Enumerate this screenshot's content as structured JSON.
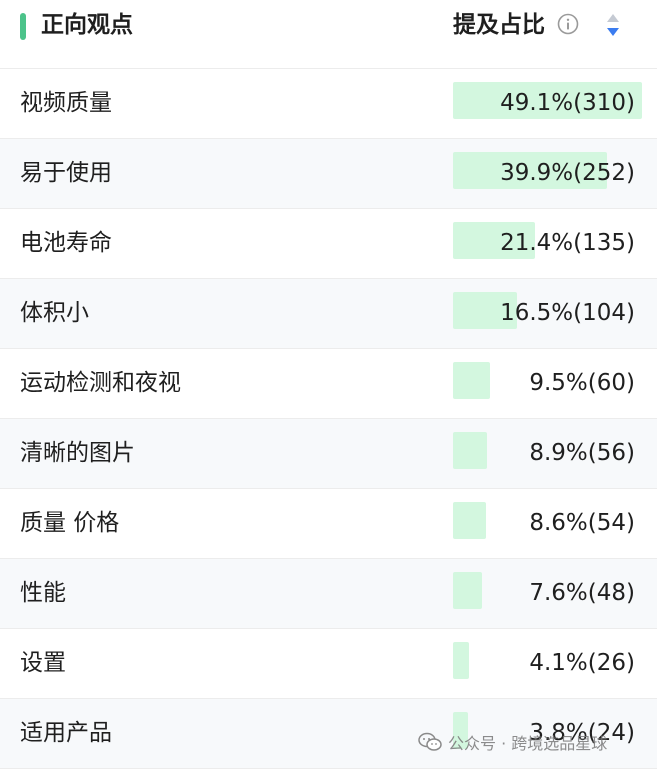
{
  "header": {
    "title": "正向观点",
    "ratio_label": "提及占比",
    "accent_color": "#4cc38a",
    "info_icon": "info-icon",
    "sort_icon": "sort-icon"
  },
  "bar_color": "#d3f7df",
  "rows": [
    {
      "label": "视频质量",
      "value": "49.1%(310)",
      "percent": 49.1
    },
    {
      "label": "易于使用",
      "value": "39.9%(252)",
      "percent": 39.9
    },
    {
      "label": "电池寿命",
      "value": "21.4%(135)",
      "percent": 21.4
    },
    {
      "label": "体积小",
      "value": "16.5%(104)",
      "percent": 16.5
    },
    {
      "label": "运动检测和夜视",
      "value": "9.5%(60)",
      "percent": 9.5
    },
    {
      "label": "清晰的图片",
      "value": "8.9%(56)",
      "percent": 8.9
    },
    {
      "label": "质量 价格",
      "value": "8.6%(54)",
      "percent": 8.6
    },
    {
      "label": "性能",
      "value": "7.6%(48)",
      "percent": 7.6
    },
    {
      "label": "设置",
      "value": "4.1%(26)",
      "percent": 4.1
    },
    {
      "label": "适用产品",
      "value": "3.8%(24)",
      "percent": 3.8
    }
  ],
  "watermark": {
    "text": "公众号 · 跨境选品星球",
    "icon": "wechat-icon"
  }
}
